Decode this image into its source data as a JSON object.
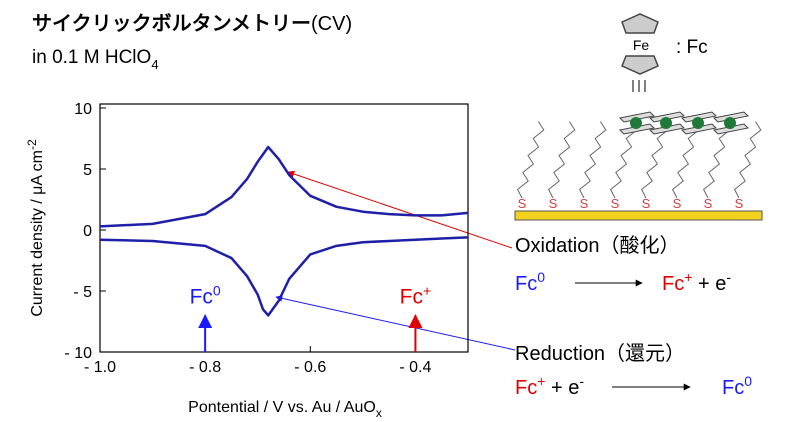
{
  "header": {
    "title": "サイクリックボルタンメトリー",
    "title_suffix": "(CV)",
    "subtitle": "in 0.1 M HClO",
    "subtitle_sub": "4"
  },
  "chart_data": {
    "type": "line",
    "x": [
      -1.0,
      -0.9,
      -0.8,
      -0.75,
      -0.72,
      -0.7,
      -0.69,
      -0.68,
      -0.66,
      -0.64,
      -0.6,
      -0.55,
      -0.5,
      -0.45,
      -0.4,
      -0.35,
      -0.3
    ],
    "series": [
      {
        "color": "#1f1fa8",
        "values": [
          0.3,
          0.5,
          1.3,
          2.7,
          4.2,
          5.6,
          6.2,
          6.8,
          5.8,
          4.5,
          2.8,
          1.9,
          1.5,
          1.3,
          1.2,
          1.2,
          1.4
        ]
      },
      {
        "color": "#1f1fa8",
        "values": [
          -0.8,
          -0.9,
          -1.3,
          -2.3,
          -3.8,
          -5.3,
          -6.5,
          -7.0,
          -5.8,
          -4.0,
          -2.0,
          -1.3,
          -1.0,
          -0.9,
          -0.8,
          -0.7,
          -0.6
        ]
      }
    ],
    "xlim": [
      -1.0,
      -0.3
    ],
    "ylim": [
      -10,
      10
    ],
    "xticks": [
      {
        "value": -1.0,
        "label": "- 1.0"
      },
      {
        "value": -0.8,
        "label": "- 0.8"
      },
      {
        "value": -0.6,
        "label": "- 0.6"
      },
      {
        "value": -0.4,
        "label": "- 0.4"
      }
    ],
    "yticks": [
      {
        "value": -10,
        "label": "- 10"
      },
      {
        "value": -5,
        "label": "- 5"
      },
      0,
      5,
      10
    ],
    "xlabel": "Pontential / V vs. Au / AuO",
    "xlabel_sub": "x",
    "ylabel": "Current density / μA cm",
    "ylabel_sup": "-2",
    "annotations": [
      {
        "text": "Fc",
        "sup": "0",
        "x": -0.8,
        "y": -7,
        "color": "#1a1aff"
      },
      {
        "text": "Fc",
        "sup": "+",
        "x": -0.4,
        "y": -7,
        "color": "#e00000"
      }
    ]
  },
  "molecule": {
    "iron": "Fe",
    "label": ": Fc",
    "sulfur": [
      "S",
      "S",
      "S",
      "S",
      "S",
      "S",
      "S",
      "S"
    ]
  },
  "oxidation": {
    "label": "Oxidation（酸化）",
    "lhs": [
      {
        "text": "Fc",
        "sup": "0",
        "color": "#1a1aff"
      }
    ],
    "rhs": [
      {
        "text": "Fc",
        "sup": "+",
        "color": "#e00000"
      },
      {
        "text": " + e",
        "sup": "-",
        "color": "#000000"
      }
    ]
  },
  "reduction": {
    "label": "Reduction（還元）",
    "lhs": [
      {
        "text": "Fc",
        "sup": "+",
        "color": "#e00000"
      },
      {
        "text": " + e",
        "sup": "-",
        "color": "#000000"
      }
    ],
    "rhs": [
      {
        "text": "Fc",
        "sup": "0",
        "color": "#1a1aff"
      }
    ]
  }
}
